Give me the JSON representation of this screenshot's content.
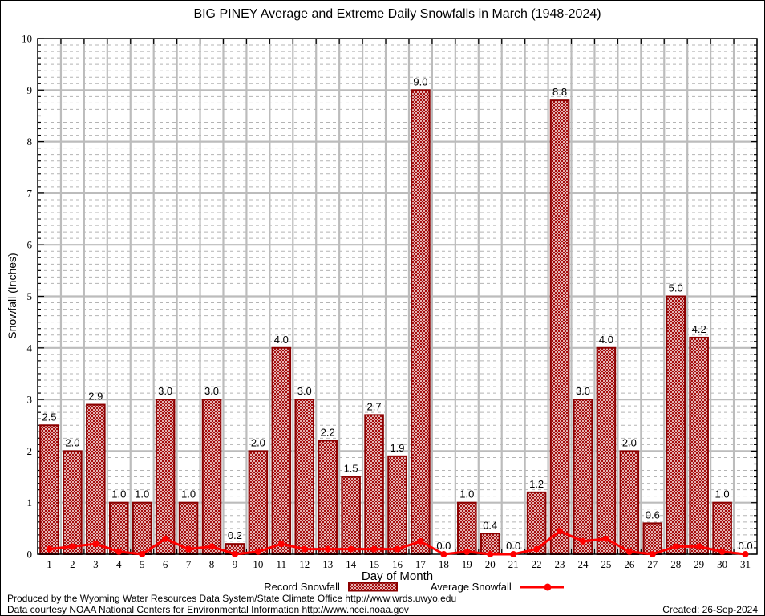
{
  "title": "BIG PINEY Average and Extreme Daily Snowfalls in March (1948-2024)",
  "ylabel": "Snowfall (Inches)",
  "xlabel": "Day of Month",
  "legend": {
    "record": "Record Snowfall",
    "average": "Average Snowfall"
  },
  "footer": {
    "line1": "Produced by the Wyoming Water Resources Data System/State Climate Office http://www.wrds.uwyo.edu",
    "line2": "Data courtesy NOAA National Centers for Environmental Information http://www.ncei.noaa.gov",
    "created": "Created: 26-Sep-2024"
  },
  "colors": {
    "bar_edge": "#8b0000",
    "bar_hatch": "#a00000",
    "line": "#ff0000",
    "grid_major": "#bcbcbc",
    "grid_minor": "#b4b4b4",
    "axis": "#000000",
    "label_text": "#000000"
  },
  "chart_data": {
    "type": "bar",
    "title": "BIG PINEY Average and Extreme Daily Snowfalls in March (1948-2024)",
    "xlabel": "Day of Month",
    "ylabel": "Snowfall (Inches)",
    "x": [
      1,
      2,
      3,
      4,
      5,
      6,
      7,
      8,
      9,
      10,
      11,
      12,
      13,
      14,
      15,
      16,
      17,
      18,
      19,
      20,
      21,
      22,
      23,
      24,
      25,
      26,
      27,
      28,
      29,
      30,
      31
    ],
    "ylim": [
      0,
      10
    ],
    "grid": true,
    "legend_position": "bottom",
    "series": [
      {
        "name": "Record Snowfall",
        "type": "bar",
        "values": [
          2.5,
          2.0,
          2.9,
          1.0,
          1.0,
          3.0,
          1.0,
          3.0,
          0.2,
          2.0,
          4.0,
          3.0,
          2.2,
          1.5,
          2.7,
          1.9,
          9.0,
          0.0,
          1.0,
          0.4,
          0.0,
          1.2,
          8.8,
          3.0,
          4.0,
          2.0,
          0.6,
          5.0,
          4.2,
          1.0,
          0.0
        ]
      },
      {
        "name": "Average Snowfall",
        "type": "line",
        "values": [
          0.1,
          0.15,
          0.2,
          0.05,
          0.0,
          0.3,
          0.1,
          0.15,
          0.0,
          0.05,
          0.2,
          0.1,
          0.1,
          0.1,
          0.1,
          0.1,
          0.25,
          0.0,
          0.05,
          0.0,
          0.0,
          0.1,
          0.45,
          0.25,
          0.3,
          0.05,
          0.0,
          0.15,
          0.15,
          0.05,
          0.0
        ]
      }
    ],
    "bar_value_labels": [
      "2.5",
      "2.0",
      "2.9",
      "1.0",
      "1.0",
      "3.0",
      "1.0",
      "3.0",
      "0.2",
      "2.0",
      "4.0",
      "3.0",
      "2.2",
      "1.5",
      "2.7",
      "1.9",
      "9.0",
      "0.0",
      "1.0",
      "0.4",
      "0.0",
      "1.2",
      "8.8",
      "3.0",
      "4.0",
      "2.0",
      "0.6",
      "5.0",
      "4.2",
      "1.0",
      "0.0"
    ]
  }
}
